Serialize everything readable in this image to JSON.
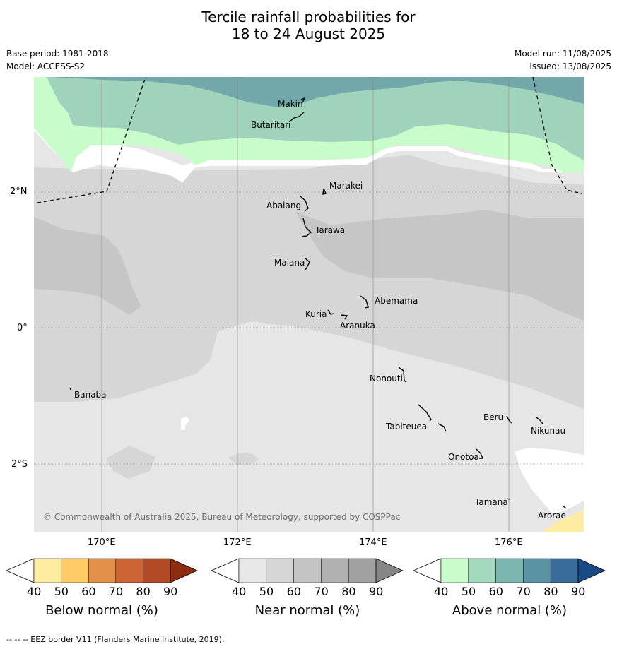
{
  "title_line1": "Tercile rainfall probabilities for",
  "title_line2": "18 to 24 August 2025",
  "meta_left": [
    "Base period: 1981-2018",
    "Model: ACCESS-S2"
  ],
  "meta_right": [
    "Model run: 11/08/2025",
    "Issued: 13/08/2025"
  ],
  "lat_labels": [
    "2°N",
    "0°",
    "2°S"
  ],
  "lon_labels": [
    "170°E",
    "172°E",
    "174°E",
    "176°E"
  ],
  "places": [
    "Makin",
    "Butaritari",
    "Marakei",
    "Abaiang",
    "Tarawa",
    "Maiana",
    "Abemama",
    "Kuria",
    "Aranuka",
    "Nonouti",
    "Banaba",
    "Beru",
    "Tabiteuea",
    "Nikunau",
    "Onotoa",
    "Tamana",
    "Arorae"
  ],
  "copyright": "© Commonwealth of Australia 2025, Bureau of Meteorology, supported by COSPPac",
  "colorbars": [
    {
      "title": "Below normal (%)",
      "ticks": [
        "40",
        "50",
        "60",
        "70",
        "80",
        "90"
      ],
      "colors": [
        "#ffffff",
        "#feeda0",
        "#fecb66",
        "#e3914a",
        "#cd6434",
        "#b24a25",
        "#8c2d12"
      ]
    },
    {
      "title": "Near normal (%)",
      "ticks": [
        "40",
        "50",
        "60",
        "70",
        "80",
        "90"
      ],
      "colors": [
        "#ffffff",
        "#e8e8e8",
        "#d6d6d6",
        "#c4c4c4",
        "#b1b1b1",
        "#a0a0a0",
        "#868686"
      ]
    },
    {
      "title": "Above normal (%)",
      "ticks": [
        "40",
        "50",
        "60",
        "70",
        "80",
        "90"
      ],
      "colors": [
        "#ffffff",
        "#c8fdcb",
        "#a3d9bd",
        "#7cb6b1",
        "#5a94a4",
        "#3a6c9b",
        "#184a85"
      ]
    }
  ],
  "footer": "--  --  -- EEZ border V11 (Flanders Marine Institute, 2019)."
}
